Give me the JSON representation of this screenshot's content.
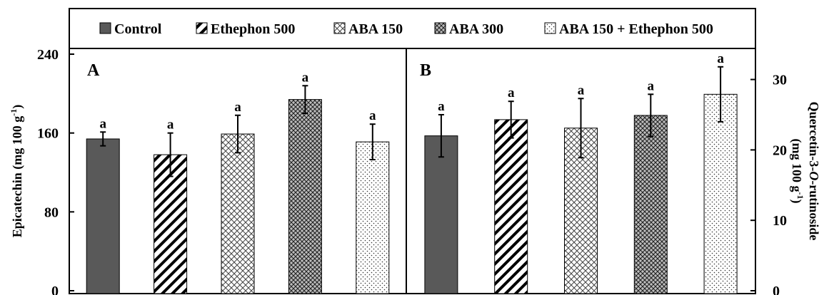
{
  "chart_data": [
    {
      "type": "bar",
      "panel_label": "A",
      "categories": [
        "Control",
        "Ethephon 500",
        "ABA 150",
        "ABA 300",
        "ABA 150 + Ethephon 500"
      ],
      "values": [
        154,
        138,
        159,
        194,
        151
      ],
      "errors": [
        7,
        22,
        19,
        14,
        18
      ],
      "sig_labels": [
        "a",
        "a",
        "a",
        "a",
        "a"
      ],
      "ylabel": "Epicatechin (mg 100 g",
      "ylabel_sup": "-1",
      "ylabel_end": ")",
      "ylim": [
        0,
        240
      ],
      "yticks": [
        "0",
        "80",
        "160",
        "240"
      ],
      "axis_side": "left",
      "legend_position": "top"
    },
    {
      "type": "bar",
      "panel_label": "B",
      "categories": [
        "Control",
        "Ethephon 500",
        "ABA 150",
        "ABA 300",
        "ABA 150 + Ethephon 500"
      ],
      "values": [
        22.0,
        24.3,
        23.1,
        24.9,
        27.9
      ],
      "errors": [
        3.0,
        2.6,
        4.2,
        3.0,
        3.9
      ],
      "sig_labels": [
        "a",
        "a",
        "a",
        "a",
        "a"
      ],
      "ylabel_line1": "Quercetin-3-",
      "ylabel_italic": "O",
      "ylabel_line1_end": "-rutinoside",
      "ylabel_line2": "(mg 100 g",
      "ylabel_line2_sup": "-1",
      "ylabel_line2_end": ")",
      "ylim": [
        0,
        33.6
      ],
      "ytick_values": [
        0,
        10,
        20,
        30
      ],
      "yticks": [
        "0",
        "10",
        "20",
        "30"
      ],
      "axis_side": "right"
    }
  ],
  "legend": {
    "items": [
      {
        "label": "Control",
        "pattern": "solid-dark"
      },
      {
        "label": "Ethephon 500",
        "pattern": "diagonal-hatch"
      },
      {
        "label": "ABA 150",
        "pattern": "crosshatch-light"
      },
      {
        "label": "ABA 300",
        "pattern": "crosshatch-dense"
      },
      {
        "label": "ABA 150 + Ethephon 500",
        "pattern": "dotted"
      }
    ]
  },
  "colors": {
    "control_fill": "#595959",
    "hatch": "#000000",
    "dense_bg": "#bdbdbd",
    "frame": "#000000"
  }
}
